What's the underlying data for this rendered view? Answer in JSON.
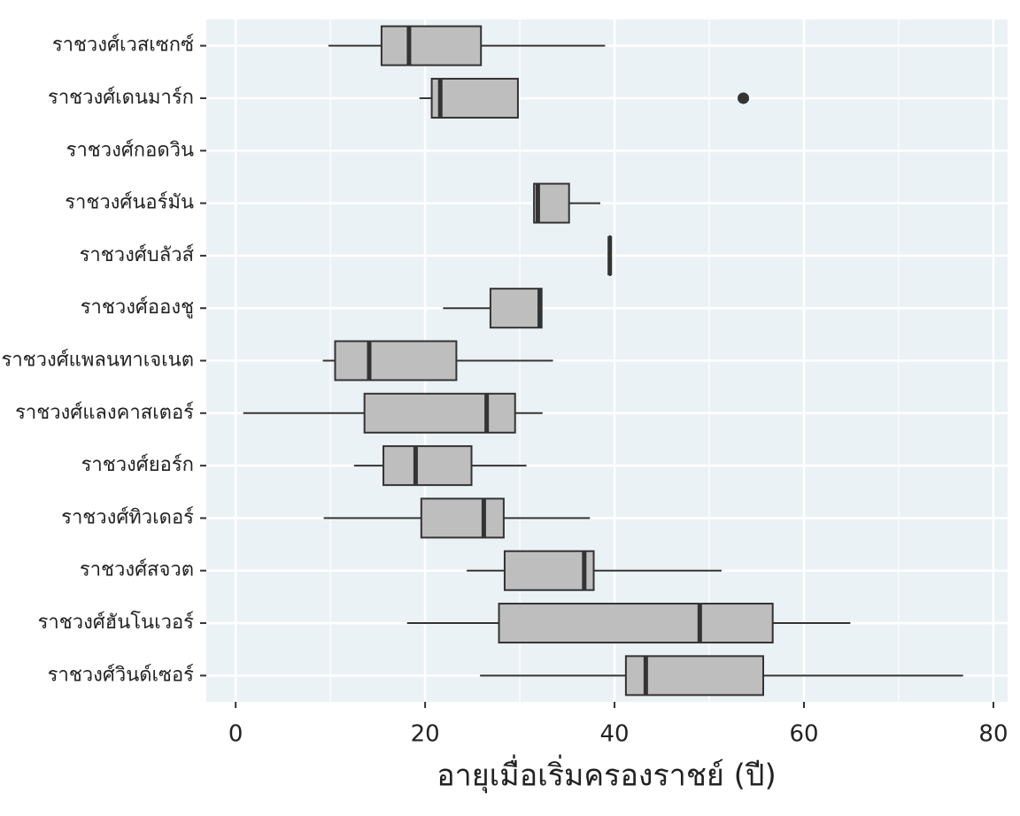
{
  "chart_data": {
    "type": "boxplot",
    "orientation": "horizontal",
    "x_label": "อายุเมื่อเริ่มครองราชย์ (ปี)",
    "categories": [
      "ราชวงศ์เวสเซกซ์",
      "ราชวงศ์เดนมาร์ก",
      "ราชวงศ์กอดวิน",
      "ราชวงศ์นอร์มัน",
      "ราชวงศ์บลัวส์",
      "ราชวงศ์อองชู",
      "ราชวงศ์แพลนทาเจเนต",
      "ราชวงศ์แลงคาสเตอร์",
      "ราชวงศ์ยอร์ก",
      "ราชวงศ์ทิวเดอร์",
      "ราชวงศ์สจวต",
      "ราชวงศ์ฮันโนเวอร์",
      "ราชวงศ์วินด์เซอร์"
    ],
    "boxes": [
      {
        "low": 9.8,
        "q1": 15.4,
        "median": 18.3,
        "q3": 25.9,
        "high": 39.0,
        "outliers": []
      },
      {
        "low": 19.4,
        "q1": 20.7,
        "median": 21.6,
        "q3": 29.8,
        "high": 29.8,
        "outliers": [
          53.6
        ]
      },
      null,
      {
        "low": 31.4,
        "q1": 31.5,
        "median": 31.9,
        "q3": 35.2,
        "high": 38.5,
        "outliers": []
      },
      {
        "low": 39.5,
        "q1": 39.5,
        "median": 39.5,
        "q3": 39.5,
        "high": 39.5,
        "outliers": []
      },
      {
        "low": 21.9,
        "q1": 26.9,
        "median": 32.1,
        "q3": 32.3,
        "high": 32.3,
        "outliers": []
      },
      {
        "low": 9.2,
        "q1": 10.5,
        "median": 14.1,
        "q3": 23.3,
        "high": 33.5,
        "outliers": []
      },
      {
        "low": 0.8,
        "q1": 13.6,
        "median": 26.5,
        "q3": 29.5,
        "high": 32.4,
        "outliers": []
      },
      {
        "low": 12.5,
        "q1": 15.6,
        "median": 19.0,
        "q3": 24.9,
        "high": 30.7,
        "outliers": []
      },
      {
        "low": 9.3,
        "q1": 19.6,
        "median": 26.2,
        "q3": 28.3,
        "high": 37.4,
        "outliers": []
      },
      {
        "low": 24.4,
        "q1": 28.4,
        "median": 36.8,
        "q3": 37.8,
        "high": 51.3,
        "outliers": []
      },
      {
        "low": 18.1,
        "q1": 27.8,
        "median": 49.0,
        "q3": 56.7,
        "high": 64.9,
        "outliers": []
      },
      {
        "low": 25.8,
        "q1": 41.2,
        "median": 43.3,
        "q3": 55.7,
        "high": 76.8,
        "outliers": []
      }
    ],
    "color": "#bebebe",
    "line_color": "#333333",
    "xlim": [
      -3.1,
      81.5
    ],
    "xticks": [
      0,
      20,
      40,
      60,
      80
    ],
    "grid": true
  }
}
